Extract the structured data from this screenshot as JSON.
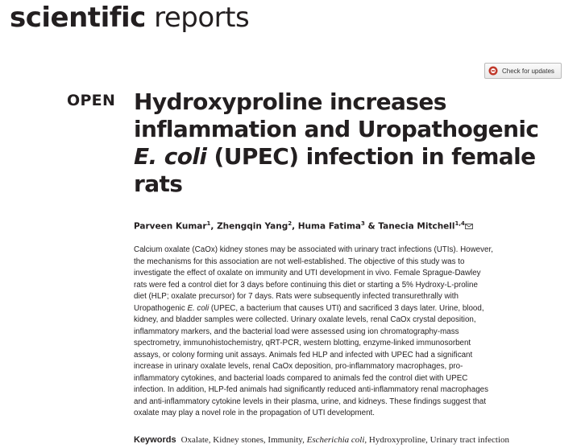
{
  "header": {
    "journal_bold": "scientific",
    "journal_light": "reports",
    "updates_button": "Check for updates"
  },
  "article": {
    "access": "OPEN",
    "title": {
      "line1": "Hydroxyproline increases",
      "line2": "inflammation and Uropathogenic",
      "line3_italic": "E. coli",
      "line3": "(UPEC) infection in female",
      "line4": "rats"
    },
    "authors": {
      "separator": ", ",
      "last_separator": " & ",
      "list": [
        {
          "name": "Parveen Kumar",
          "aff": "1"
        },
        {
          "name": "Zhengqin Yang",
          "aff": "2"
        },
        {
          "name": "Huma Fatima",
          "aff": "3"
        },
        {
          "name": "Tanecia Mitchell",
          "aff": "1,4"
        }
      ]
    },
    "abstract": {
      "lines": [
        "Calcium oxalate (CaOx) kidney stones may be associated with urinary tract infections (UTIs). However,",
        "the mechanisms for this association are not well-established. The objective of this study was to",
        "investigate the effect of oxalate on immunity and UTI development in vivo. Female Sprague-Dawley",
        "rats were fed a control diet for 3 days before continuing this diet or starting a 5% Hydroxy-L-proline",
        "diet (HLP; oxalate precursor) for 7 days. Rats were subsequently infected transurethrally with",
        {
          "before": "Uropathogenic ",
          "italic": "E. coli",
          "after": " (UPEC, a bacterium that causes UTI) and sacrificed 3 days later. Urine, blood,"
        },
        "kidney, and bladder samples were collected. Urinary oxalate levels, renal CaOx crystal deposition,",
        "inflammatory markers, and the bacterial load were assessed using ion chromatography-mass",
        "spectrometry, immunohistochemistry, qRT-PCR, western blotting, enzyme-linked immunosorbent",
        "assays, or colony forming unit assays. Animals fed HLP and infected with UPEC had a significant",
        "increase in urinary oxalate levels, renal CaOx deposition, pro-inflammatory macrophages, pro-",
        "inflammatory cytokines, and bacterial loads compared to animals fed the control diet with UPEC",
        "infection. In addition, HLP-fed animals had significantly reduced anti-inflammatory renal macrophages",
        "and anti-inflammatory cytokine levels in their plasma, urine, and kidneys. These findings suggest that",
        "oxalate may play a novel role in the propagation of UTI development."
      ]
    },
    "keywords": {
      "label": "Keywords",
      "separator": ", ",
      "items": [
        {
          "text": "Oxalate"
        },
        {
          "text": "Kidney stones"
        },
        {
          "text": "Immunity"
        },
        {
          "text": "Escherichia coli",
          "italic": true
        },
        {
          "text": "Hydroxyproline"
        },
        {
          "text": "Urinary tract infection"
        }
      ]
    }
  }
}
